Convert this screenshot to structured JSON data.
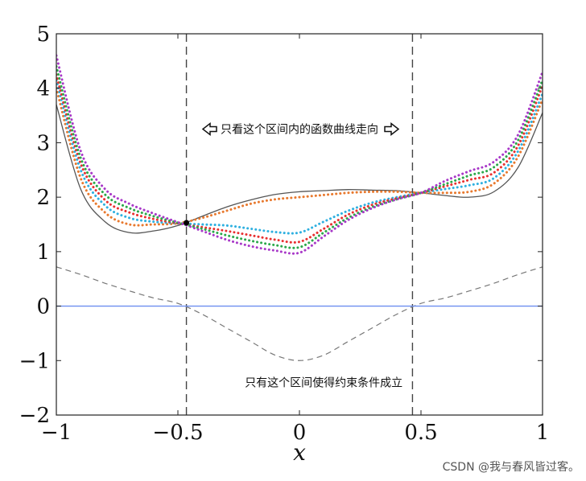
{
  "chart_data": {
    "type": "line",
    "xlabel": "x",
    "xlim": [
      -1,
      1
    ],
    "ylim": [
      -2,
      5
    ],
    "x_ticks": [
      -1,
      -0.5,
      0,
      0.5,
      1
    ],
    "y_ticks": [
      -2,
      -1,
      0,
      1,
      2,
      3,
      4,
      5
    ],
    "x_tick_labels": [
      "−1",
      "−0.5",
      "0",
      "0.5",
      "1"
    ],
    "y_tick_labels": [
      "−2",
      "−1",
      "0",
      "1",
      "2",
      "3",
      "4",
      "5"
    ],
    "x": [
      -1,
      -0.9,
      -0.8,
      -0.7,
      -0.6,
      -0.5,
      -0.4,
      -0.3,
      -0.2,
      -0.1,
      0,
      0.1,
      0.2,
      0.3,
      0.4,
      0.5,
      0.6,
      0.7,
      0.8,
      0.9,
      1
    ],
    "series": [
      {
        "color": "#555555",
        "style": "solid",
        "values": [
          3.7,
          2.15,
          1.55,
          1.35,
          1.38,
          1.48,
          1.65,
          1.82,
          1.95,
          2.05,
          2.1,
          2.12,
          2.14,
          2.13,
          2.12,
          2.08,
          2.03,
          2.0,
          2.1,
          2.55,
          3.55
        ]
      },
      {
        "color": "#e8792e",
        "style": "dotted",
        "values": [
          4.0,
          2.35,
          1.72,
          1.5,
          1.5,
          1.52,
          1.62,
          1.75,
          1.88,
          1.96,
          2.0,
          2.04,
          2.08,
          2.1,
          2.1,
          2.08,
          2.08,
          2.1,
          2.25,
          2.75,
          3.8
        ]
      },
      {
        "color": "#2fb0e0",
        "style": "dotted",
        "values": [
          4.15,
          2.5,
          1.85,
          1.62,
          1.55,
          1.52,
          1.5,
          1.48,
          1.42,
          1.36,
          1.35,
          1.55,
          1.75,
          1.9,
          2.0,
          2.08,
          2.15,
          2.22,
          2.35,
          2.85,
          3.9
        ]
      },
      {
        "color": "#e83030",
        "style": "dotted",
        "values": [
          4.25,
          2.62,
          1.95,
          1.72,
          1.6,
          1.52,
          1.45,
          1.38,
          1.3,
          1.22,
          1.18,
          1.42,
          1.68,
          1.86,
          1.98,
          2.08,
          2.2,
          2.32,
          2.45,
          2.95,
          4.05
        ]
      },
      {
        "color": "#2aa84a",
        "style": "dotted",
        "values": [
          4.4,
          2.72,
          2.05,
          1.8,
          1.65,
          1.53,
          1.42,
          1.3,
          1.2,
          1.12,
          1.08,
          1.35,
          1.62,
          1.82,
          1.96,
          2.08,
          2.24,
          2.4,
          2.55,
          3.05,
          4.15
        ]
      },
      {
        "color": "#a838c8",
        "style": "dotted",
        "values": [
          4.6,
          2.85,
          2.15,
          1.88,
          1.7,
          1.54,
          1.38,
          1.22,
          1.1,
          1.02,
          0.98,
          1.28,
          1.58,
          1.8,
          1.96,
          2.08,
          2.3,
          2.48,
          2.65,
          3.15,
          4.3
        ]
      },
      {
        "color": "#777777",
        "style": "dashed",
        "values": [
          0.72,
          0.58,
          0.42,
          0.28,
          0.15,
          0.05,
          -0.15,
          -0.4,
          -0.65,
          -0.9,
          -1.0,
          -0.9,
          -0.65,
          -0.4,
          -0.15,
          0.05,
          0.15,
          0.28,
          0.42,
          0.58,
          0.72
        ]
      },
      {
        "color": "#6c8ef0",
        "style": "solid",
        "values": [
          0,
          0,
          0,
          0,
          0,
          0,
          0,
          0,
          0,
          0,
          0,
          0,
          0,
          0,
          0,
          0,
          0,
          0,
          0,
          0,
          0
        ]
      }
    ],
    "vlines": [
      -0.465,
      0.465
    ],
    "marker_point": {
      "x": -0.465,
      "y": 1.53
    },
    "annotations": [
      {
        "text": "只看这个区间内的函数曲线走向",
        "x": 0.0,
        "y": 3.25
      },
      {
        "text": "只有这个区间使得约束条件成立",
        "x": 0.1,
        "y": -1.4
      }
    ],
    "grid": false
  },
  "watermark": "CSDN @我与春风皆过客。"
}
